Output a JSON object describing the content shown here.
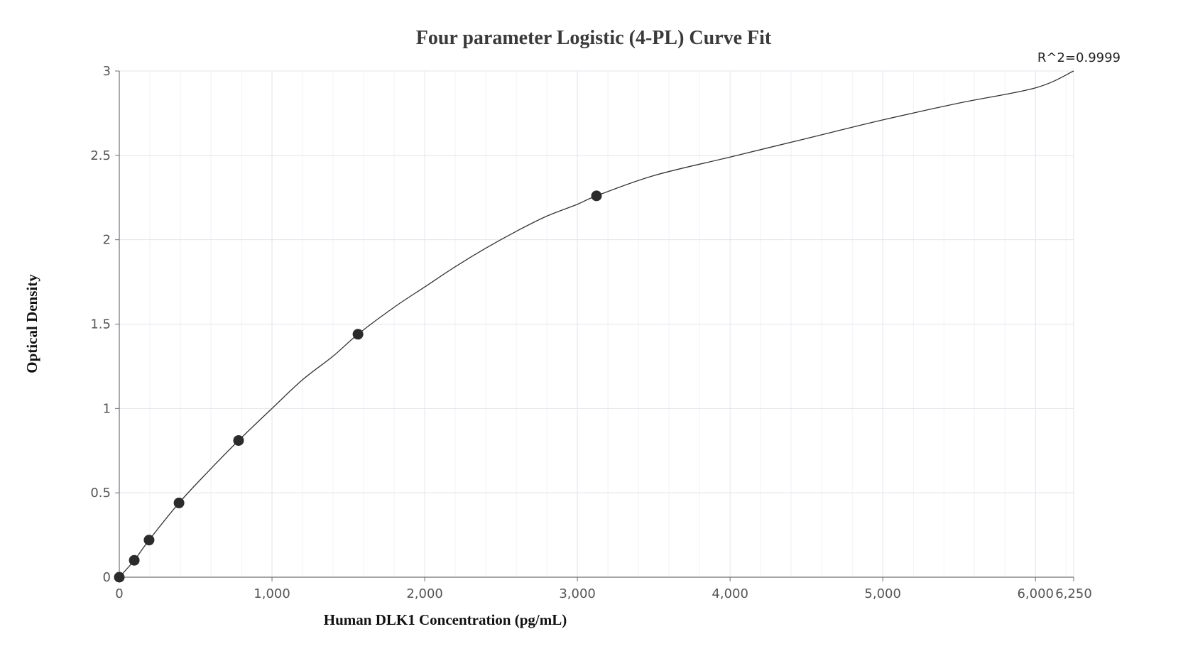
{
  "chart_data": {
    "type": "scatter",
    "title": "Four parameter Logistic (4-PL) Curve Fit",
    "xlabel": "Human DLK1 Concentration (pg/mL)",
    "ylabel": "Optical Density",
    "annotation": "R^2=0.9999",
    "xlim": [
      0,
      6250
    ],
    "ylim": [
      0,
      3
    ],
    "x_ticks": [
      0,
      1000,
      2000,
      3000,
      4000,
      5000,
      6000,
      6250
    ],
    "x_tick_labels": [
      "0",
      "1,000",
      "2,000",
      "3,000",
      "4,000",
      "5,000",
      "6,000",
      "6,250"
    ],
    "y_ticks": [
      0,
      0.5,
      1,
      1.5,
      2,
      2.5,
      3
    ],
    "y_tick_labels": [
      "0",
      "0.5",
      "1",
      "1.5",
      "2",
      "2.5",
      "3"
    ],
    "x_minor_step": 200,
    "grid": true,
    "series": [
      {
        "kind": "points",
        "x": [
          0,
          98,
          195,
          391,
          781,
          1563,
          3125
        ],
        "y": [
          0.0,
          0.1,
          0.22,
          0.44,
          0.81,
          1.44,
          2.26
        ]
      },
      {
        "kind": "fit-curve",
        "x": [
          0,
          98,
          195,
          391,
          586,
          781,
          1000,
          1200,
          1400,
          1563,
          1800,
          2000,
          2200,
          2400,
          2600,
          2800,
          3000,
          3125,
          3500,
          4000,
          4500,
          5000,
          5500,
          6000,
          6250
        ],
        "y": [
          0.0,
          0.1,
          0.22,
          0.44,
          0.63,
          0.81,
          1.0,
          1.17,
          1.31,
          1.44,
          1.6,
          1.72,
          1.84,
          1.95,
          2.05,
          2.14,
          2.21,
          2.26,
          2.38,
          2.49,
          2.6,
          2.71,
          2.81,
          2.9,
          3.0
        ]
      }
    ],
    "colors": {
      "point": "#2b2b2b",
      "curve": "#333333",
      "grid_major": "#e1e4ee",
      "grid_minor": "#f1f2f7",
      "axis": "#6e7079"
    }
  }
}
